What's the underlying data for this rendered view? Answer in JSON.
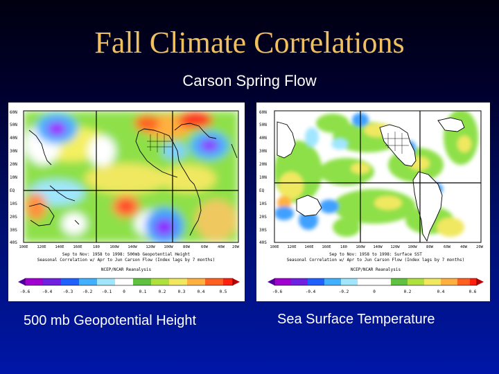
{
  "slide": {
    "title": "Fall Climate Correlations",
    "subtitle": "Carson Spring Flow"
  },
  "left_map": {
    "caption": "500 mb Geopotential Height",
    "lat_labels": [
      "60N",
      "50N",
      "40N",
      "30N",
      "20N",
      "10N",
      "EQ",
      "10S",
      "20S",
      "30S",
      "40S"
    ],
    "lon_labels": [
      "100E",
      "120E",
      "140E",
      "160E",
      "180",
      "160W",
      "140W",
      "120W",
      "100W",
      "80W",
      "60W",
      "40W",
      "20W"
    ],
    "info_line1": "Sep to Nov: 1958 to 1998: 500mb Geopotential Height",
    "info_line2": "Seasonal Correlation w/ Apr to Jun Carson Flow (Index lags by 7 months)",
    "info_line3": "NCEP/NCAR Reanalysis",
    "colorbar_labels": [
      "-0.6",
      "-0.4",
      "-0.3",
      "-0.2",
      "-0.1",
      "0",
      "0.1",
      "0.2",
      "0.3",
      "0.4",
      "0.5"
    ]
  },
  "right_map": {
    "caption": "Sea Surface Temperature",
    "lat_labels": [
      "60N",
      "50N",
      "40N",
      "30N",
      "20N",
      "10N",
      "EQ",
      "10S",
      "20S",
      "30S",
      "40S"
    ],
    "lon_labels": [
      "100E",
      "120E",
      "140E",
      "160E",
      "180",
      "160W",
      "140W",
      "120W",
      "100W",
      "80W",
      "60W",
      "40W",
      "20W"
    ],
    "info_line1": "Sep to Nov: 1958 to 1998: Surface SST",
    "info_line2": "Seasonal Correlation w/ Apr to Jun Carson Flow (Index lags by 7 months)",
    "info_line3": "NCEP/NCAR Reanalysis",
    "colorbar_labels": [
      "-0.6",
      "-0.4",
      "-0.2",
      "0",
      "0.2",
      "0.4",
      "0.6"
    ]
  }
}
